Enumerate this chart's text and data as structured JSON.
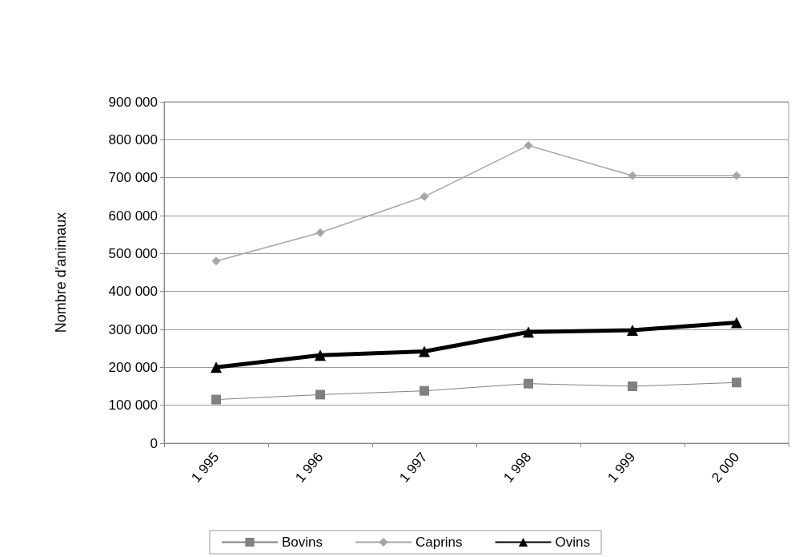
{
  "chart_data": {
    "type": "line",
    "ylabel": "Nombre d'animaux",
    "categories": [
      "1 995",
      "1 996",
      "1 997",
      "1 998",
      "1 999",
      "2 000"
    ],
    "series": [
      {
        "name": "Bovins",
        "color": "#808080",
        "marker": "square",
        "values": [
          115000,
          128000,
          138000,
          157000,
          150000,
          160000
        ]
      },
      {
        "name": "Caprins",
        "color": "#a6a6a6",
        "marker": "diamond",
        "values": [
          480000,
          555000,
          650000,
          785000,
          705000,
          705000
        ]
      },
      {
        "name": "Ovins",
        "color": "#000000",
        "marker": "triangle",
        "values": [
          200000,
          232000,
          242000,
          293000,
          298000,
          318000
        ]
      }
    ],
    "ylim": [
      0,
      900000
    ],
    "yticks": [
      0,
      100000,
      200000,
      300000,
      400000,
      500000,
      600000,
      700000,
      800000,
      900000
    ],
    "grid": "y",
    "legend": "bottom"
  }
}
